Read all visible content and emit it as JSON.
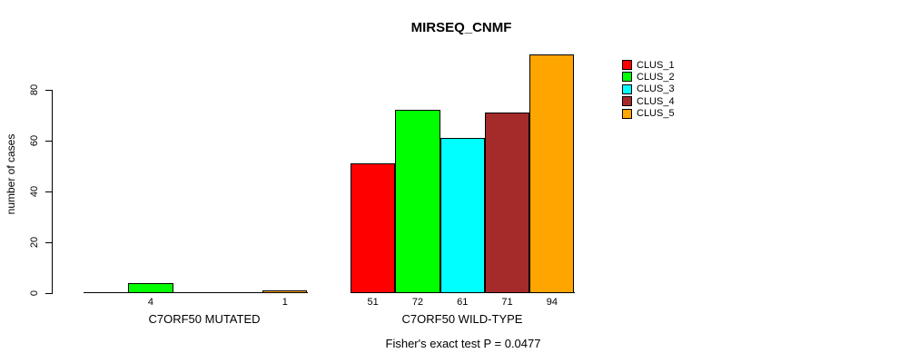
{
  "title": "MIRSEQ_CNMF",
  "footer": "Fisher's exact test P = 0.0477",
  "y_axis": {
    "label": "number of cases",
    "ticks": [
      0,
      20,
      40,
      60,
      80
    ]
  },
  "legend": {
    "items": [
      {
        "label": "CLUS_1",
        "color": "#ff0000"
      },
      {
        "label": "CLUS_2",
        "color": "#00ff00"
      },
      {
        "label": "CLUS_3",
        "color": "#00ffff"
      },
      {
        "label": "CLUS_4",
        "color": "#a52a2a"
      },
      {
        "label": "CLUS_5",
        "color": "#ffa500"
      }
    ]
  },
  "chart_data": {
    "type": "bar",
    "title": "MIRSEQ_CNMF",
    "xlabel": "",
    "ylabel": "number of cases",
    "ylim": [
      0,
      94
    ],
    "yticks": [
      0,
      20,
      40,
      60,
      80
    ],
    "grid": false,
    "legend_position": "right-outside",
    "annotation": "Fisher's exact test P = 0.0477",
    "groups": [
      {
        "label": "C7ORF50 MUTATED",
        "values": [
          0,
          4,
          0,
          0,
          1
        ],
        "bar_labels": [
          "",
          "4",
          "",
          "",
          "1"
        ]
      },
      {
        "label": "C7ORF50 WILD-TYPE",
        "values": [
          51,
          72,
          61,
          71,
          94
        ],
        "bar_labels": [
          "51",
          "72",
          "61",
          "71",
          "94"
        ]
      }
    ],
    "series": [
      {
        "name": "CLUS_1",
        "color": "#ff0000",
        "values": [
          0,
          51
        ]
      },
      {
        "name": "CLUS_2",
        "color": "#00ff00",
        "values": [
          4,
          72
        ]
      },
      {
        "name": "CLUS_3",
        "color": "#00ffff",
        "values": [
          0,
          61
        ]
      },
      {
        "name": "CLUS_4",
        "color": "#a52a2a",
        "values": [
          0,
          71
        ]
      },
      {
        "name": "CLUS_5",
        "color": "#ffa500",
        "values": [
          1,
          94
        ]
      }
    ]
  }
}
